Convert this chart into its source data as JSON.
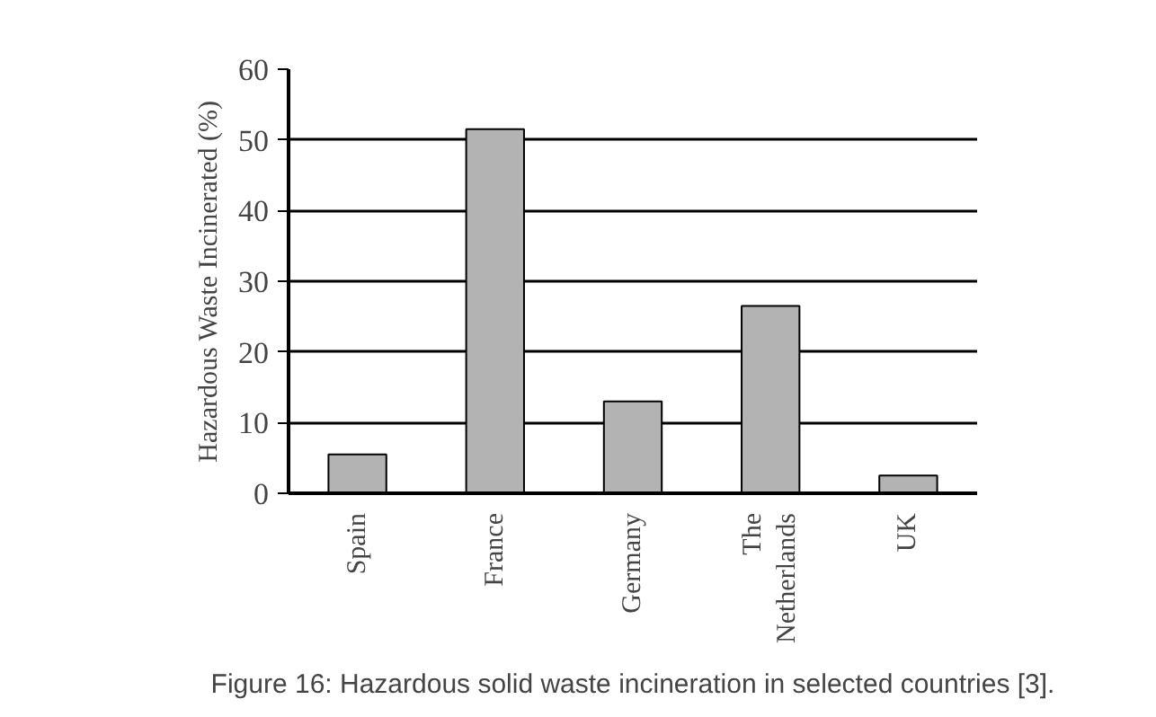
{
  "chart_data": {
    "type": "bar",
    "ylabel": "Hazardous Waste Incinerated (%)",
    "categories": [
      "Spain",
      "France",
      "Germany",
      "The\nNetherlands",
      "UK"
    ],
    "values": [
      5.5,
      51.5,
      13,
      26.5,
      2.5
    ],
    "color": "#b3b3b3",
    "ylim": [
      0,
      60
    ],
    "yticks": [
      0,
      10,
      20,
      30,
      40,
      50,
      60
    ],
    "grid": "y",
    "annotations": [
      "Figure 16: Hazardous solid waste incineration in selected countries [3]."
    ]
  }
}
